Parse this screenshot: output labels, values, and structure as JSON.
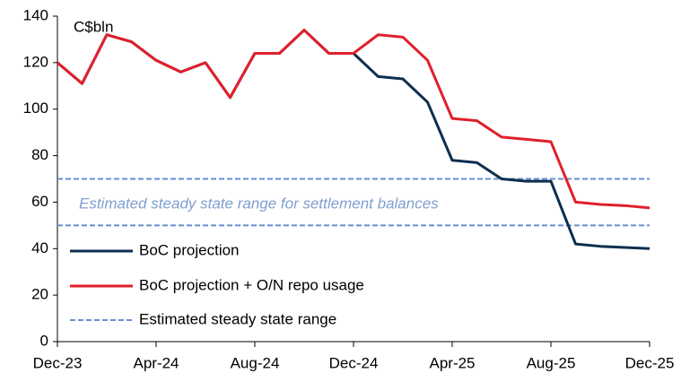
{
  "chart_data": {
    "type": "line",
    "unit_label": "C$bln",
    "annotation": "Estimated steady state range for settlement balances",
    "categories": [
      "Dec-23",
      null,
      null,
      null,
      "Apr-24",
      null,
      null,
      null,
      "Aug-24",
      null,
      null,
      null,
      "Dec-24",
      null,
      null,
      null,
      "Apr-25",
      null,
      null,
      null,
      "Aug-25",
      null,
      null,
      null,
      "Dec-25"
    ],
    "series": [
      {
        "name": "BoC projection",
        "color": "#0d2f4f",
        "values": [
          120,
          111,
          132,
          129,
          121,
          116,
          120,
          105,
          124,
          124,
          134,
          124,
          124,
          114,
          113,
          103,
          78,
          77,
          70,
          69,
          69,
          42,
          41,
          40.5,
          40
        ]
      },
      {
        "name": "BoC projection + O/N repo usage",
        "color": "#e0202a",
        "values": [
          120,
          111,
          132,
          129,
          121,
          116,
          120,
          105,
          124,
          124,
          134,
          124,
          124,
          132,
          131,
          121,
          96,
          95,
          88,
          87,
          86,
          60,
          59,
          58.5,
          57.5
        ]
      }
    ],
    "range": {
      "name": "Estimated steady state range",
      "color": "#6a8fd0",
      "values": [
        50,
        70
      ]
    },
    "ylim": [
      0,
      140
    ],
    "yticks": [
      0,
      20,
      40,
      60,
      80,
      100,
      120,
      140
    ]
  }
}
